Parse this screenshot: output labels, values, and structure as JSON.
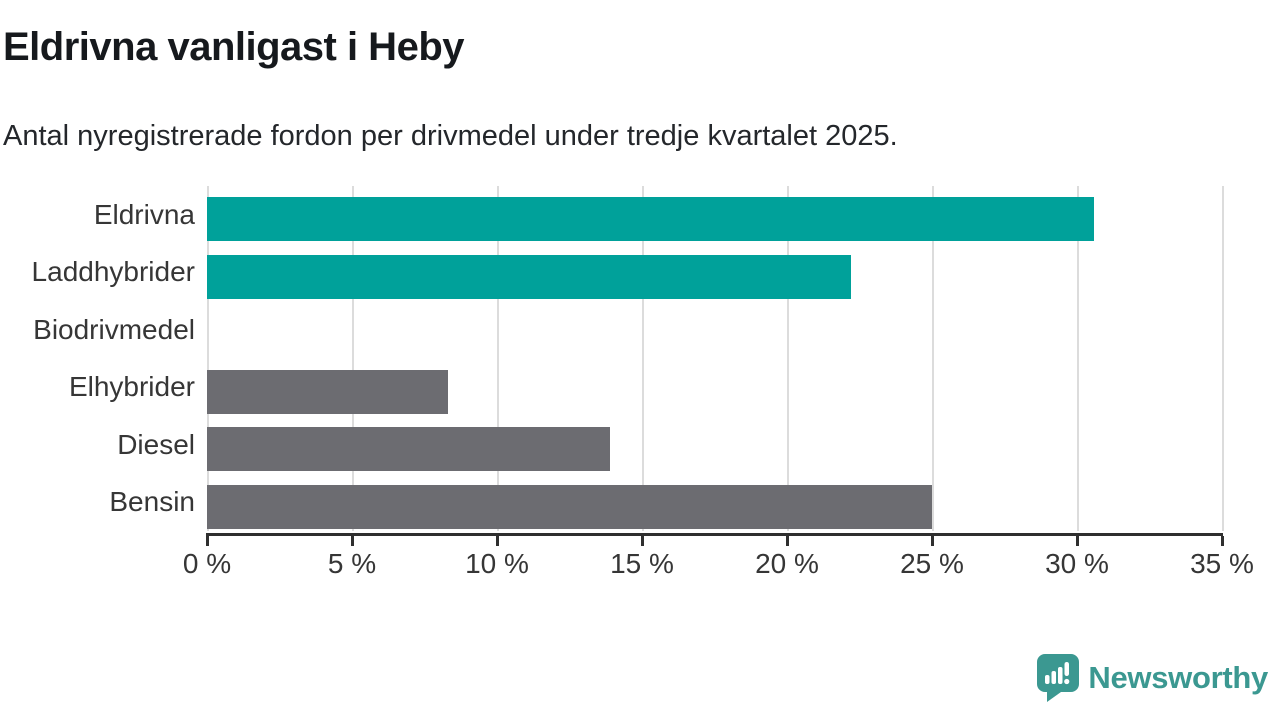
{
  "title": "Eldrivna vanligast i Heby",
  "subtitle": "Antal nyregistrerade fordon per drivmedel under tredje kvartalet 2025.",
  "chart_data": {
    "type": "bar",
    "orientation": "horizontal",
    "title": "Eldrivna vanligast i Heby",
    "subtitle": "Antal nyregistrerade fordon per drivmedel under tredje kvartalet 2025.",
    "categories": [
      "Eldrivna",
      "Laddhybrider",
      "Biodrivmedel",
      "Elhybrider",
      "Diesel",
      "Bensin"
    ],
    "values": [
      30.6,
      22.2,
      0,
      8.3,
      13.9,
      25.0
    ],
    "bar_colors": [
      "#00a19a",
      "#00a19a",
      "#6c6c71",
      "#6c6c71",
      "#6c6c71",
      "#6c6c71"
    ],
    "xlim": [
      0,
      35
    ],
    "x_tick_values": [
      0,
      5,
      10,
      15,
      20,
      25,
      30,
      35
    ],
    "x_tick_labels": [
      "0 %",
      "5 %",
      "10 %",
      "15 %",
      "20 %",
      "25 %",
      "30 %",
      "35 %"
    ],
    "xlabel": "",
    "ylabel": "",
    "grid": "vertical",
    "legend": "none"
  },
  "colors": {
    "highlight_bar": "#00a19a",
    "default_bar": "#6c6c71",
    "gridline": "#dcdcdc",
    "axis": "#2f2f2f",
    "title_text": "#16191d",
    "label_text": "#363636",
    "brand": "#3b9891",
    "background": "#ffffff"
  },
  "branding": {
    "name": "Newsworthy",
    "icon": "newsworthy-chart-bubble-icon"
  }
}
